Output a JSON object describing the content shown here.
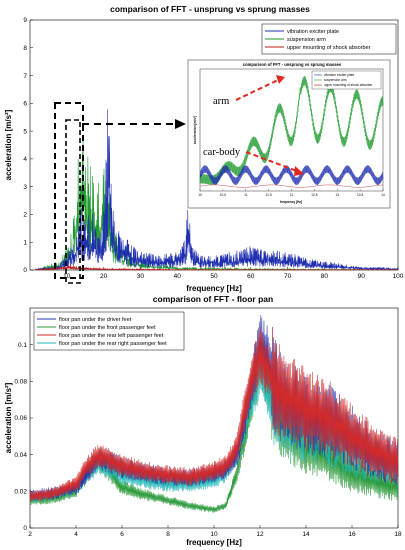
{
  "chart_data": [
    {
      "type": "line",
      "title": "comparison of FFT - unsprung vs sprung masses",
      "xlabel": "frequency [Hz]",
      "ylabel": "acceleration [m/s²]",
      "xlim": [
        0,
        100
      ],
      "ylim": [
        0,
        9
      ],
      "xticks": [
        "10",
        "20",
        "30",
        "40",
        "50",
        "60",
        "70",
        "80",
        "90",
        "100"
      ],
      "yticks": [
        "0",
        "1",
        "2",
        "3",
        "4",
        "5",
        "6",
        "7",
        "8",
        "9"
      ],
      "legend_position": "top-right",
      "series": [
        {
          "name": "vibration exciter plate",
          "color": "#1f2fb0",
          "x": [
            2,
            6,
            8,
            10,
            12,
            13,
            14,
            15,
            16,
            17,
            18,
            20,
            21,
            21.5,
            22,
            23,
            25,
            28,
            30,
            35,
            40,
            42,
            43,
            44,
            46,
            50,
            55,
            60,
            65,
            70,
            75,
            80,
            85,
            90,
            95,
            100
          ],
          "y": [
            0.05,
            0.1,
            0.2,
            0.5,
            1.0,
            1.6,
            2.2,
            2.0,
            1.8,
            1.9,
            1.5,
            2.0,
            5.0,
            8.4,
            4.0,
            1.4,
            1.2,
            0.8,
            0.6,
            0.5,
            0.6,
            1.0,
            2.2,
            0.9,
            0.5,
            0.5,
            0.6,
            0.8,
            0.7,
            0.6,
            0.4,
            0.3,
            0.2,
            0.1,
            0.1,
            0.05
          ]
        },
        {
          "name": "suspension arm",
          "color": "#1e9a2e",
          "x": [
            2,
            8,
            10,
            12,
            13,
            14,
            15,
            16,
            17,
            18,
            19,
            20,
            21,
            22,
            23,
            24,
            25,
            27,
            30,
            40,
            60,
            100
          ],
          "y": [
            0.05,
            0.3,
            0.8,
            2.2,
            3.8,
            4.6,
            4.1,
            3.6,
            3.3,
            3.0,
            3.1,
            3.4,
            3.8,
            2.0,
            1.2,
            1.5,
            1.0,
            0.6,
            0.3,
            0.1,
            0.05,
            0.02
          ]
        },
        {
          "name": "upper mounting of shock absorber",
          "color": "#c0181a",
          "x": [
            2,
            5,
            8,
            10,
            11,
            12,
            14,
            20,
            40,
            100
          ],
          "y": [
            0.02,
            0.05,
            0.1,
            0.15,
            0.2,
            0.15,
            0.1,
            0.05,
            0.02,
            0.01
          ]
        }
      ],
      "annotations": [
        "arm",
        "car-body"
      ],
      "inset": {
        "title": "comparison of FFT - unsprung vs sprung masses",
        "xlabel": "frequency [Hz]",
        "ylabel": "acceleration [m/s²]",
        "xticks": [
          "10",
          "10.5",
          "11",
          "11.5",
          "12",
          "12.5",
          "13",
          "13.5",
          "14"
        ],
        "legend": [
          "vibration exciter plate",
          "suspension arm",
          "upper mounting of shock absorber"
        ]
      }
    },
    {
      "type": "line",
      "title": "comparison of FFT - floor pan",
      "xlabel": "frequency [Hz]",
      "ylabel": "acceleration [m/s²]",
      "xlim": [
        2,
        18
      ],
      "ylim": [
        0,
        0.12
      ],
      "xticks": [
        "2",
        "4",
        "6",
        "8",
        "10",
        "12",
        "14",
        "16",
        "18"
      ],
      "yticks": [
        "0",
        "0.02",
        "0.04",
        "0.06",
        "0.08",
        "0.1"
      ],
      "legend_position": "top-left",
      "series": [
        {
          "name": "floor pan under the driver feet",
          "color": "#2233aa",
          "x": [
            2,
            3,
            4,
            4.5,
            5,
            5.5,
            6,
            7,
            8,
            9,
            10,
            10.5,
            11,
            11.5,
            12,
            12.3,
            12.7,
            13,
            14,
            15,
            16,
            17,
            18
          ],
          "y": [
            0.018,
            0.019,
            0.022,
            0.03,
            0.038,
            0.036,
            0.033,
            0.03,
            0.028,
            0.027,
            0.03,
            0.032,
            0.04,
            0.07,
            0.1,
            0.095,
            0.075,
            0.07,
            0.062,
            0.058,
            0.05,
            0.04,
            0.035
          ]
        },
        {
          "name": "floor pan under the front passenger feet",
          "color": "#2a9a3a",
          "x": [
            2,
            3,
            4,
            4.5,
            5,
            5.5,
            6,
            7,
            8,
            9,
            10,
            10.5,
            11,
            11.5,
            12,
            12.5,
            13,
            14,
            15,
            16,
            17,
            18
          ],
          "y": [
            0.015,
            0.016,
            0.02,
            0.03,
            0.037,
            0.03,
            0.022,
            0.018,
            0.015,
            0.012,
            0.01,
            0.012,
            0.03,
            0.06,
            0.09,
            0.07,
            0.055,
            0.045,
            0.038,
            0.03,
            0.025,
            0.022
          ]
        },
        {
          "name": "floor pan under the rear left passenger feet",
          "color": "#d42a2a",
          "x": [
            2,
            3,
            4,
            4.5,
            5,
            5.5,
            6,
            7,
            8,
            9,
            10,
            10.5,
            11,
            11.5,
            12,
            12.5,
            13,
            14,
            15,
            16,
            17,
            18
          ],
          "y": [
            0.017,
            0.019,
            0.024,
            0.034,
            0.04,
            0.037,
            0.034,
            0.031,
            0.029,
            0.028,
            0.031,
            0.034,
            0.043,
            0.075,
            0.095,
            0.082,
            0.072,
            0.065,
            0.06,
            0.05,
            0.042,
            0.036
          ]
        },
        {
          "name": "floor pan under the rear right passenger feet",
          "color": "#22b8b8",
          "x": [
            2,
            3,
            4,
            4.5,
            5,
            5.5,
            6,
            7,
            8,
            9,
            10,
            10.5,
            11,
            11.5,
            12,
            12.5,
            13,
            14,
            15,
            16,
            17,
            18
          ],
          "y": [
            0.016,
            0.018,
            0.022,
            0.03,
            0.035,
            0.032,
            0.029,
            0.026,
            0.024,
            0.024,
            0.026,
            0.03,
            0.04,
            0.065,
            0.085,
            0.07,
            0.06,
            0.055,
            0.05,
            0.043,
            0.037,
            0.032
          ]
        }
      ]
    }
  ]
}
